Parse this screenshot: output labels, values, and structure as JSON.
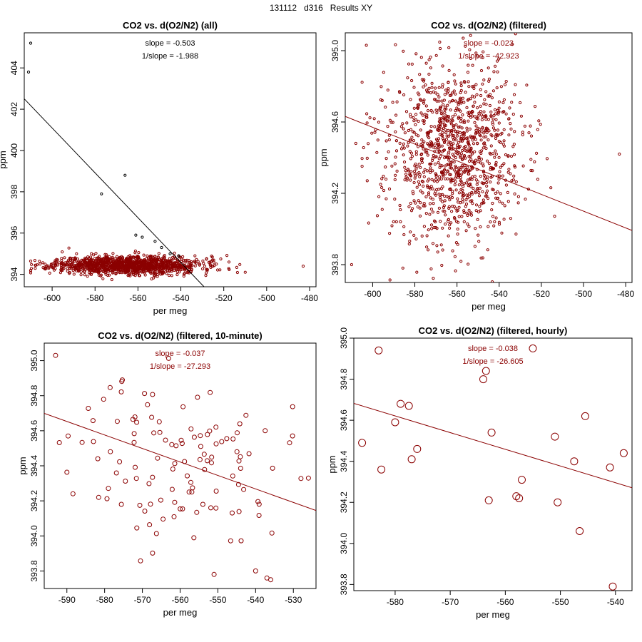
{
  "supertitle": "131112   d316   Results XY",
  "colors": {
    "dark_red": "#8b0000",
    "black": "#000000"
  },
  "chart_data": [
    {
      "type": "scatter",
      "title": "CO2 vs. d(O2/N2) (all)",
      "xlabel": "per meg",
      "ylabel": "ppm",
      "xlim": [
        -613,
        -477
      ],
      "ylim": [
        393.4,
        405.7
      ],
      "xticks": [
        -600,
        -580,
        -560,
        -540,
        -520,
        -500,
        -480
      ],
      "xtick_labels": [
        "-600",
        "-580",
        "-560",
        "-540",
        "-520",
        "-500",
        "-480"
      ],
      "yticks": [
        394,
        396,
        398,
        400,
        402,
        404
      ],
      "ytick_labels": [
        "394",
        "396",
        "398",
        "400",
        "402",
        "404"
      ],
      "annotations": [
        "slope = -0.503",
        "1/slope = -1.988"
      ],
      "annotation_color": "#000000",
      "point_color": "#8b0000",
      "point_radius": 1.6,
      "cloud": {
        "n": 1300,
        "x_center": -565,
        "x_sd": 17,
        "x_min": -610,
        "x_max": -510,
        "y_center": 394.45,
        "y_sd": 0.22,
        "seed": 11
      },
      "outliers": [
        {
          "x": -610,
          "y": 405.2,
          "color": "#000000"
        },
        {
          "x": -611,
          "y": 403.8,
          "color": "#000000"
        },
        {
          "x": -566,
          "y": 398.8,
          "color": "#000000"
        },
        {
          "x": -577,
          "y": 397.9,
          "color": "#000000"
        },
        {
          "x": -561,
          "y": 395.9,
          "color": "#000000"
        },
        {
          "x": -558,
          "y": 395.8,
          "color": "#000000"
        },
        {
          "x": -552,
          "y": 395.6,
          "color": "#000000"
        },
        {
          "x": -549,
          "y": 395.3,
          "color": "#000000"
        },
        {
          "x": -545,
          "y": 395.0,
          "color": "#000000"
        },
        {
          "x": -541,
          "y": 394.9,
          "color": "#000000"
        },
        {
          "x": -483,
          "y": 394.4,
          "color": "#8b0000"
        }
      ],
      "fit_line": {
        "slope": -0.1086,
        "intercept": 335.93,
        "color": "#000000"
      }
    },
    {
      "type": "scatter",
      "title": "CO2 vs. d(O2/N2) (filtered)",
      "xlabel": "per meg",
      "ylabel": "ppm",
      "xlim": [
        -613,
        -477
      ],
      "ylim": [
        393.7,
        395.1
      ],
      "xticks": [
        -600,
        -580,
        -560,
        -540,
        -520,
        -500,
        -480
      ],
      "xtick_labels": [
        "-600",
        "-580",
        "-560",
        "-540",
        "-520",
        "-500",
        "-480"
      ],
      "yticks": [
        393.8,
        394.2,
        394.6,
        395.0
      ],
      "ytick_labels": [
        "393.8",
        "394.2",
        "394.6",
        "395.0"
      ],
      "annotations": [
        "slope = -0.023",
        "1/slope = -42.923"
      ],
      "annotation_color": "#8b0000",
      "point_color": "#8b0000",
      "point_radius": 1.6,
      "cloud": {
        "n": 1150,
        "x_center": -562,
        "x_sd": 16,
        "x_min": -605,
        "x_max": -512,
        "y_center": 394.42,
        "y_sd": 0.26,
        "seed": 23
      },
      "outliers": [
        {
          "x": -610,
          "y": 393.8,
          "color": "#8b0000"
        },
        {
          "x": -483,
          "y": 394.42,
          "color": "#8b0000"
        },
        {
          "x": -603,
          "y": 395.03,
          "color": "#8b0000"
        },
        {
          "x": -608,
          "y": 394.48,
          "color": "#8b0000"
        }
      ],
      "fit_line": {
        "slope": -0.0047,
        "intercept": 391.75,
        "color": "#8b0000"
      }
    },
    {
      "type": "scatter",
      "title": "CO2 vs. d(O2/N2) (filtered, 10-minute)",
      "xlabel": "per meg",
      "ylabel": "ppm",
      "xlim": [
        -596,
        -524
      ],
      "ylim": [
        393.7,
        395.1
      ],
      "xticks": [
        -590,
        -580,
        -570,
        -560,
        -550,
        -540,
        -530
      ],
      "xtick_labels": [
        "-590",
        "-580",
        "-570",
        "-560",
        "-550",
        "-540",
        "-530"
      ],
      "yticks": [
        393.8,
        394.0,
        394.2,
        394.4,
        394.6,
        394.8,
        395.0
      ],
      "ytick_labels": [
        "393.8",
        "394.0",
        "394.2",
        "394.4",
        "394.6",
        "394.8",
        "395.0"
      ],
      "annotations": [
        "slope = -0.037",
        "1/slope = -27.293"
      ],
      "annotation_color": "#8b0000",
      "point_color": "#8b0000",
      "point_radius": 3,
      "cloud": {
        "n": 120,
        "x_center": -560,
        "x_sd": 14,
        "x_min": -592,
        "x_max": -527,
        "y_center": 394.43,
        "y_sd": 0.24,
        "seed": 37
      },
      "outliers": [
        {
          "x": -593,
          "y": 395.03,
          "color": "#8b0000"
        },
        {
          "x": -526,
          "y": 394.33,
          "color": "#8b0000"
        },
        {
          "x": -540,
          "y": 393.8,
          "color": "#8b0000"
        },
        {
          "x": -537,
          "y": 393.76,
          "color": "#8b0000"
        },
        {
          "x": -536,
          "y": 393.75,
          "color": "#8b0000"
        },
        {
          "x": -551,
          "y": 393.78,
          "color": "#8b0000"
        }
      ],
      "fit_line": {
        "slope": -0.0077,
        "intercept": 390.11,
        "color": "#8b0000"
      }
    },
    {
      "type": "scatter",
      "title": "CO2 vs. d(O2/N2) (filtered, hourly)",
      "xlabel": "per meg",
      "ylabel": "ppm",
      "xlim": [
        -587.5,
        -537
      ],
      "ylim": [
        393.77,
        395.0
      ],
      "xticks": [
        -580,
        -570,
        -560,
        -550,
        -540
      ],
      "xtick_labels": [
        "-580",
        "-570",
        "-560",
        "-550",
        "-540"
      ],
      "yticks": [
        393.8,
        394.0,
        394.2,
        394.4,
        394.6,
        394.8,
        395.0
      ],
      "ytick_labels": [
        "393.8",
        "394.0",
        "394.2",
        "394.4",
        "394.6",
        "394.8",
        "395.0"
      ],
      "annotations": [
        "slope = -0.038",
        "1/slope = -26.605"
      ],
      "annotation_color": "#8b0000",
      "point_color": "#8b0000",
      "point_radius": 5,
      "points": [
        {
          "x": -586,
          "y": 394.49
        },
        {
          "x": -583,
          "y": 394.94
        },
        {
          "x": -582.5,
          "y": 394.36
        },
        {
          "x": -580,
          "y": 394.59
        },
        {
          "x": -579,
          "y": 394.68
        },
        {
          "x": -577.5,
          "y": 394.67
        },
        {
          "x": -577,
          "y": 394.41
        },
        {
          "x": -576,
          "y": 394.46
        },
        {
          "x": -564,
          "y": 394.8
        },
        {
          "x": -563.5,
          "y": 394.84
        },
        {
          "x": -563,
          "y": 394.21
        },
        {
          "x": -562.5,
          "y": 394.54
        },
        {
          "x": -558,
          "y": 394.23
        },
        {
          "x": -557.5,
          "y": 394.22
        },
        {
          "x": -557,
          "y": 394.31
        },
        {
          "x": -555,
          "y": 394.95
        },
        {
          "x": -551,
          "y": 394.52
        },
        {
          "x": -550.5,
          "y": 394.2
        },
        {
          "x": -547.5,
          "y": 394.4
        },
        {
          "x": -546.5,
          "y": 394.06
        },
        {
          "x": -545.5,
          "y": 394.62
        },
        {
          "x": -541,
          "y": 394.37
        },
        {
          "x": -540.5,
          "y": 393.79
        },
        {
          "x": -538.5,
          "y": 394.44
        }
      ],
      "fit_line": {
        "slope": -0.00814,
        "intercept": 389.9,
        "color": "#8b0000"
      }
    }
  ]
}
